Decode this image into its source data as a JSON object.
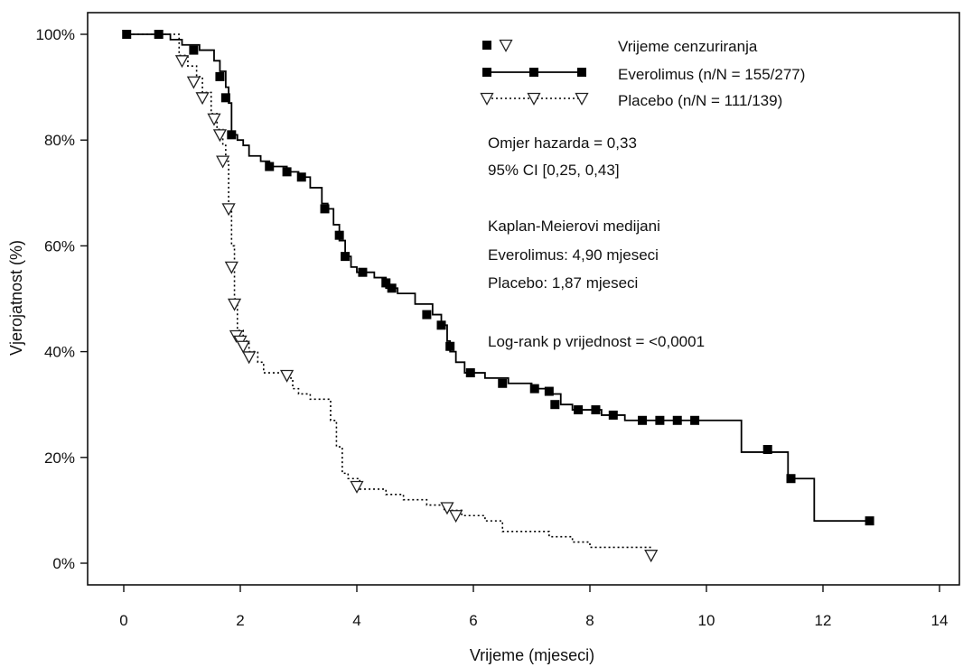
{
  "chart_data": {
    "type": "line",
    "title": "",
    "xlabel": "Vrijeme (mjeseci)",
    "ylabel": "Vjerojatnost (%)",
    "xlim": [
      0,
      14
    ],
    "ylim": [
      0,
      100
    ],
    "x_ticks": [
      0,
      2,
      4,
      6,
      8,
      10,
      12,
      14
    ],
    "x_tick_labels": [
      "0",
      "2",
      "4",
      "6",
      "8",
      "10",
      "12",
      "14"
    ],
    "y_ticks": [
      0,
      20,
      40,
      60,
      80,
      100
    ],
    "y_tick_labels": [
      "0%",
      "20%",
      "40%",
      "60%",
      "80%",
      "100%"
    ],
    "grid": false,
    "legend": {
      "placement": "top-right",
      "censor_label": "Vrijeme cenzuriranja",
      "entries": [
        "Everolimus (n/N = 155/277)",
        "Placebo (n/N = 111/139)"
      ]
    },
    "annotations": [
      "Omjer hazarda = 0,33",
      "95% CI [0,25, 0,43]",
      "Kaplan-Meierovi medijani",
      "Everolimus: 4,90 mjeseci",
      "Placebo: 1,87 mjeseci",
      "Log-rank p vrijednost = <0,0001"
    ],
    "series": [
      {
        "name": "Everolimus (n/N = 155/277)",
        "color": "#000000",
        "line_style": "solid",
        "marker": "filled-square",
        "steps": [
          [
            0,
            100
          ],
          [
            0.8,
            99
          ],
          [
            1.0,
            98
          ],
          [
            1.3,
            97
          ],
          [
            1.55,
            95
          ],
          [
            1.65,
            93
          ],
          [
            1.75,
            90
          ],
          [
            1.8,
            87
          ],
          [
            1.85,
            81
          ],
          [
            1.95,
            80
          ],
          [
            2.05,
            79
          ],
          [
            2.15,
            77
          ],
          [
            2.35,
            76
          ],
          [
            2.5,
            75
          ],
          [
            2.8,
            74
          ],
          [
            3.0,
            73
          ],
          [
            3.2,
            71
          ],
          [
            3.4,
            68
          ],
          [
            3.5,
            67
          ],
          [
            3.6,
            64
          ],
          [
            3.7,
            61
          ],
          [
            3.8,
            58
          ],
          [
            3.9,
            56
          ],
          [
            4.0,
            55
          ],
          [
            4.3,
            54
          ],
          [
            4.5,
            52
          ],
          [
            4.7,
            51
          ],
          [
            5.0,
            49
          ],
          [
            5.3,
            47
          ],
          [
            5.45,
            45
          ],
          [
            5.55,
            42
          ],
          [
            5.6,
            40
          ],
          [
            5.7,
            38
          ],
          [
            5.85,
            36
          ],
          [
            6.2,
            35
          ],
          [
            6.6,
            34
          ],
          [
            7.0,
            33
          ],
          [
            7.3,
            32
          ],
          [
            7.5,
            30
          ],
          [
            7.7,
            29
          ],
          [
            8.2,
            28
          ],
          [
            8.6,
            27
          ],
          [
            10.6,
            21
          ],
          [
            11.4,
            16
          ],
          [
            11.85,
            8
          ],
          [
            12.8,
            8
          ]
        ],
        "censor_points": [
          [
            0.05,
            100
          ],
          [
            0.6,
            100
          ],
          [
            1.2,
            97
          ],
          [
            1.65,
            92
          ],
          [
            1.75,
            88
          ],
          [
            1.85,
            81
          ],
          [
            2.5,
            75
          ],
          [
            2.8,
            74
          ],
          [
            3.05,
            73
          ],
          [
            3.45,
            67
          ],
          [
            3.7,
            62
          ],
          [
            3.8,
            58
          ],
          [
            4.1,
            55
          ],
          [
            4.5,
            53
          ],
          [
            4.6,
            52
          ],
          [
            5.2,
            47
          ],
          [
            5.45,
            45
          ],
          [
            5.6,
            41
          ],
          [
            5.95,
            36
          ],
          [
            6.5,
            34
          ],
          [
            7.05,
            33
          ],
          [
            7.3,
            32.5
          ],
          [
            7.4,
            30
          ],
          [
            7.8,
            29
          ],
          [
            8.1,
            29
          ],
          [
            8.4,
            28
          ],
          [
            8.9,
            27
          ],
          [
            9.2,
            27
          ],
          [
            9.5,
            27
          ],
          [
            9.8,
            27
          ],
          [
            11.05,
            21.5
          ],
          [
            11.45,
            16
          ],
          [
            12.8,
            8
          ]
        ]
      },
      {
        "name": "Placebo (n/N = 111/139)",
        "color": "#000000",
        "line_style": "dotted",
        "marker": "open-triangle",
        "steps": [
          [
            0,
            100
          ],
          [
            0.95,
            96
          ],
          [
            1.1,
            94
          ],
          [
            1.25,
            92
          ],
          [
            1.35,
            89
          ],
          [
            1.5,
            85
          ],
          [
            1.6,
            82
          ],
          [
            1.7,
            79
          ],
          [
            1.75,
            76
          ],
          [
            1.8,
            67
          ],
          [
            1.85,
            60
          ],
          [
            1.9,
            50
          ],
          [
            1.95,
            44
          ],
          [
            2.05,
            42
          ],
          [
            2.15,
            40
          ],
          [
            2.3,
            38
          ],
          [
            2.4,
            36
          ],
          [
            2.85,
            35
          ],
          [
            2.9,
            33
          ],
          [
            3.0,
            32
          ],
          [
            3.2,
            31
          ],
          [
            3.55,
            27
          ],
          [
            3.65,
            22
          ],
          [
            3.75,
            17
          ],
          [
            3.85,
            16
          ],
          [
            4.05,
            14
          ],
          [
            4.5,
            13
          ],
          [
            4.8,
            12
          ],
          [
            5.2,
            11
          ],
          [
            5.5,
            10
          ],
          [
            5.8,
            9
          ],
          [
            6.2,
            8
          ],
          [
            6.5,
            6
          ],
          [
            7.3,
            5
          ],
          [
            7.7,
            4
          ],
          [
            8.0,
            3
          ],
          [
            9.05,
            2
          ]
        ],
        "censor_points": [
          [
            1.0,
            95
          ],
          [
            1.2,
            91
          ],
          [
            1.35,
            88
          ],
          [
            1.55,
            84
          ],
          [
            1.65,
            81
          ],
          [
            1.7,
            76
          ],
          [
            1.8,
            67
          ],
          [
            1.85,
            56
          ],
          [
            1.9,
            49
          ],
          [
            1.93,
            43
          ],
          [
            2.0,
            42
          ],
          [
            2.05,
            41
          ],
          [
            2.15,
            39
          ],
          [
            2.8,
            35.5
          ],
          [
            4.0,
            14.5
          ],
          [
            5.55,
            10.5
          ],
          [
            5.7,
            9
          ],
          [
            9.05,
            1.5
          ]
        ]
      }
    ]
  }
}
